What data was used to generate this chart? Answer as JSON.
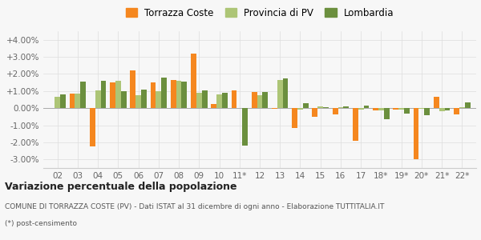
{
  "years": [
    "02",
    "03",
    "04",
    "05",
    "06",
    "07",
    "08",
    "09",
    "10",
    "11*",
    "12",
    "13",
    "14",
    "15",
    "16",
    "17",
    "18*",
    "19*",
    "20*",
    "21*",
    "22*"
  ],
  "torrazza": [
    0.02,
    0.85,
    -2.25,
    1.5,
    2.2,
    1.5,
    1.65,
    3.2,
    0.25,
    1.05,
    0.95,
    -0.05,
    -1.15,
    -0.5,
    -0.35,
    -1.9,
    -0.15,
    -0.1,
    -3.0,
    0.65,
    -0.35
  ],
  "provincia": [
    0.65,
    0.85,
    1.05,
    1.6,
    0.75,
    1.0,
    1.6,
    0.9,
    0.8,
    0.0,
    0.75,
    1.65,
    -0.1,
    0.1,
    0.05,
    -0.1,
    -0.15,
    -0.1,
    -0.05,
    -0.2,
    0.05
  ],
  "lombardia": [
    0.8,
    1.55,
    1.6,
    1.0,
    1.1,
    1.8,
    1.55,
    1.05,
    0.9,
    -2.2,
    0.95,
    1.75,
    0.3,
    0.05,
    0.1,
    0.15,
    -0.65,
    -0.3,
    -0.4,
    -0.15,
    0.35
  ],
  "color_torrazza": "#f5871f",
  "color_provincia": "#adc576",
  "color_lombardia": "#6b8f3e",
  "title": "Variazione percentuale della popolazione",
  "subtitle1": "COMUNE DI TORRAZZA COSTE (PV) - Dati ISTAT al 31 dicembre di ogni anno - Elaborazione TUTTITALIA.IT",
  "subtitle2": "(*) post-censimento",
  "ylim_min": -3.5,
  "ylim_max": 4.5,
  "yticks": [
    -3.0,
    -2.0,
    -1.0,
    0.0,
    1.0,
    2.0,
    3.0,
    4.0
  ],
  "ytick_labels": [
    "-3.00%",
    "-2.00%",
    "-1.00%",
    "0.00%",
    "+1.00%",
    "+2.00%",
    "+3.00%",
    "+4.00%"
  ],
  "bg_color": "#f7f7f7",
  "bar_width": 0.27
}
